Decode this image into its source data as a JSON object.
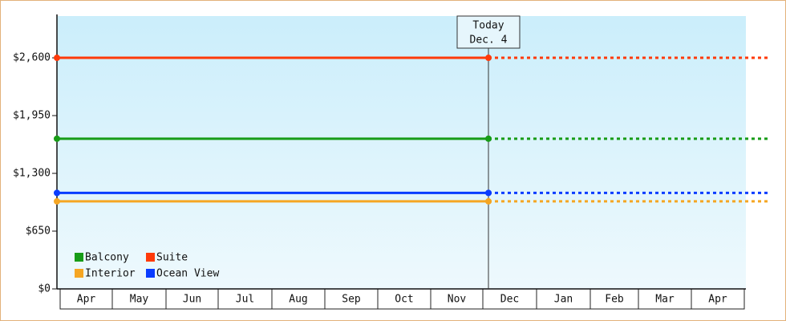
{
  "chart_data": {
    "type": "line",
    "categories": [
      "Apr",
      "May",
      "Jun",
      "Jul",
      "Aug",
      "Sep",
      "Oct",
      "Nov",
      "Dec",
      "Jan",
      "Feb",
      "Mar",
      "Apr"
    ],
    "series": [
      {
        "name": "Balcony",
        "color": "#179c17",
        "value": 1690
      },
      {
        "name": "Suite",
        "color": "#ff3a0a",
        "value": 2600
      },
      {
        "name": "Interior",
        "color": "#f5a623",
        "value": 985
      },
      {
        "name": "Ocean View",
        "color": "#0a3cff",
        "value": 1080
      }
    ],
    "annotation": {
      "title": "Today",
      "date": "Dec. 4"
    },
    "ylim": [
      0,
      3070
    ],
    "yticks": [
      {
        "value": 0,
        "label": "$0"
      },
      {
        "value": 650,
        "label": "$650"
      },
      {
        "value": 1300,
        "label": "$1,300"
      },
      {
        "value": 1950,
        "label": "$1,950"
      },
      {
        "value": 2600,
        "label": "$2,600"
      }
    ],
    "legend": "bottom-left"
  }
}
